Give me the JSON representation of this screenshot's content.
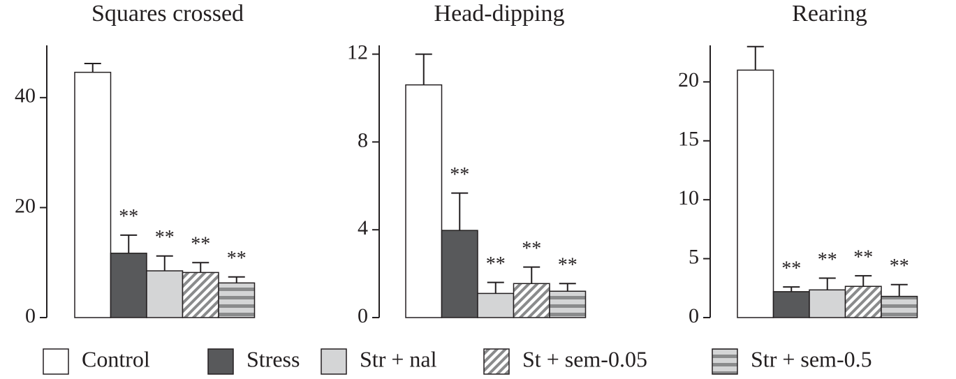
{
  "chart_data": [
    {
      "type": "bar",
      "title": "Squares crossed",
      "values": [
        44.6,
        11.7,
        8.5,
        8.2,
        6.3
      ],
      "errors": [
        1.6,
        3.3,
        2.7,
        1.8,
        1.1
      ],
      "annotations": [
        null,
        "**",
        "**",
        "**",
        "**"
      ],
      "ylim": [
        0,
        49.5
      ],
      "yticks": [
        0,
        20,
        40
      ]
    },
    {
      "type": "bar",
      "title": "Head-dipping",
      "values": [
        10.6,
        3.97,
        1.1,
        1.55,
        1.2
      ],
      "errors": [
        1.4,
        1.7,
        0.5,
        0.75,
        0.35
      ],
      "annotations": [
        null,
        "**",
        "**",
        "**",
        "**"
      ],
      "ylim": [
        0,
        12.4
      ],
      "yticks": [
        0,
        4,
        8,
        12
      ]
    },
    {
      "type": "bar",
      "title": "Rearing",
      "values": [
        21.0,
        2.2,
        2.35,
        2.65,
        1.8
      ],
      "errors": [
        2.0,
        0.4,
        1.0,
        0.9,
        1.0
      ],
      "annotations": [
        null,
        "**",
        "**",
        "**",
        "**"
      ],
      "ylim": [
        0,
        23.1
      ],
      "yticks": [
        0,
        5,
        10,
        15,
        20
      ]
    }
  ],
  "legend": {
    "names": [
      "Control",
      "Stress",
      "Str + nal",
      "St + sem-0.05",
      "Str + sem-0.5"
    ],
    "colors": [
      "#ffffff",
      "#58595b",
      "#d4d5d6",
      "#ffffff",
      "#d4d5d6"
    ],
    "patterns": [
      "none",
      "none",
      "none",
      "diagonal",
      "horizontal"
    ],
    "pattern_color": "#8a8b8c"
  }
}
